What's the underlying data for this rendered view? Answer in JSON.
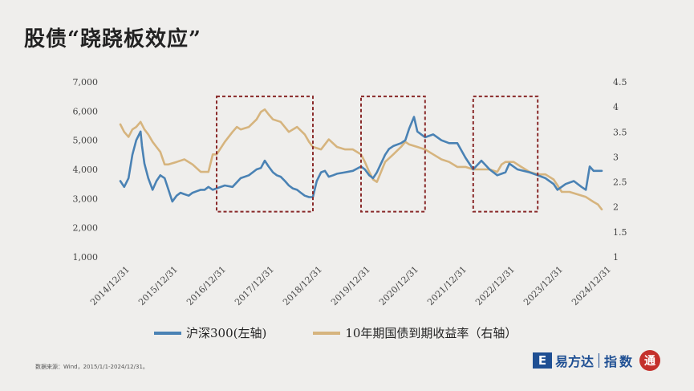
{
  "title": "股债“跷跷板效应”",
  "source_note": "数据来源：Wind，2015/1/1-2024/12/31。",
  "logo": {
    "mark": "E",
    "name": "易方达",
    "sub": "指数",
    "seal": "通"
  },
  "colors": {
    "csi300": "#4a82b4",
    "bond": "#d6b47e",
    "box": "#8a2a2a"
  },
  "chart_data": {
    "type": "line",
    "title": "股债“跷跷板效应”",
    "x_ticks": [
      "2014/12/31",
      "2015/12/31",
      "2016/12/31",
      "2017/12/31",
      "2018/12/31",
      "2019/12/31",
      "2020/12/31",
      "2021/12/31",
      "2022/12/31",
      "2023/12/31",
      "2024/12/31"
    ],
    "x_range": [
      2015.0,
      2025.0
    ],
    "y_left": {
      "ticks": [
        "1,000",
        "2,000",
        "3,000",
        "4,000",
        "5,000",
        "6,000",
        "7,000"
      ],
      "range": [
        1000,
        7000
      ]
    },
    "y_right": {
      "ticks": [
        "1",
        "1.5",
        "2",
        "2.5",
        "3",
        "3.5",
        "4",
        "4.5"
      ],
      "range": [
        1,
        4.5
      ]
    },
    "grid": false,
    "legend_position": "bottom",
    "series": [
      {
        "name": "沪深300(左轴)",
        "axis": "left",
        "x": [
          2015.0,
          2015.08,
          2015.17,
          2015.25,
          2015.33,
          2015.42,
          2015.45,
          2015.5,
          2015.58,
          2015.67,
          2015.75,
          2015.83,
          2015.92,
          2016.0,
          2016.08,
          2016.17,
          2016.25,
          2016.33,
          2016.42,
          2016.5,
          2016.58,
          2016.67,
          2016.75,
          2016.83,
          2016.92,
          2017.0,
          2017.17,
          2017.33,
          2017.5,
          2017.67,
          2017.83,
          2017.92,
          2018.0,
          2018.08,
          2018.17,
          2018.25,
          2018.33,
          2018.42,
          2018.5,
          2018.58,
          2018.67,
          2018.75,
          2018.83,
          2018.92,
          2019.0,
          2019.08,
          2019.17,
          2019.25,
          2019.33,
          2019.42,
          2019.5,
          2019.67,
          2019.83,
          2020.0,
          2020.08,
          2020.17,
          2020.25,
          2020.33,
          2020.5,
          2020.58,
          2020.67,
          2020.83,
          2020.92,
          2021.0,
          2021.1,
          2021.17,
          2021.25,
          2021.33,
          2021.5,
          2021.67,
          2021.83,
          2022.0,
          2022.17,
          2022.33,
          2022.5,
          2022.67,
          2022.83,
          2022.92,
          2023.0,
          2023.08,
          2023.25,
          2023.5,
          2023.67,
          2023.83,
          2024.0,
          2024.08,
          2024.25,
          2024.42,
          2024.58,
          2024.67,
          2024.75,
          2024.83,
          2024.92,
          2025.0
        ],
        "values": [
          3600,
          3400,
          3700,
          4500,
          5000,
          5300,
          4800,
          4200,
          3700,
          3300,
          3600,
          3800,
          3700,
          3300,
          2900,
          3100,
          3200,
          3150,
          3100,
          3200,
          3250,
          3300,
          3300,
          3400,
          3300,
          3350,
          3450,
          3400,
          3700,
          3800,
          4000,
          4050,
          4300,
          4100,
          3900,
          3800,
          3750,
          3600,
          3450,
          3350,
          3300,
          3200,
          3100,
          3050,
          3050,
          3600,
          3900,
          3950,
          3750,
          3800,
          3850,
          3900,
          3950,
          4100,
          4000,
          3800,
          3700,
          3900,
          4500,
          4700,
          4800,
          4900,
          5000,
          5400,
          5800,
          5300,
          5200,
          5100,
          5200,
          5000,
          4900,
          4900,
          4400,
          4000,
          4300,
          4000,
          3800,
          3850,
          3900,
          4200,
          4000,
          3900,
          3800,
          3700,
          3500,
          3300,
          3500,
          3600,
          3400,
          3300,
          4100,
          3950,
          3950,
          3950
        ]
      },
      {
        "name": "10年期国债到期收益率（右轴）",
        "axis": "right",
        "x": [
          2015.0,
          2015.08,
          2015.17,
          2015.25,
          2015.33,
          2015.42,
          2015.5,
          2015.58,
          2015.67,
          2015.75,
          2015.83,
          2015.92,
          2016.0,
          2016.17,
          2016.33,
          2016.5,
          2016.67,
          2016.83,
          2016.92,
          2017.0,
          2017.17,
          2017.33,
          2017.42,
          2017.5,
          2017.67,
          2017.83,
          2017.92,
          2018.0,
          2018.08,
          2018.17,
          2018.33,
          2018.5,
          2018.67,
          2018.83,
          2018.92,
          2019.0,
          2019.17,
          2019.33,
          2019.5,
          2019.67,
          2019.83,
          2020.0,
          2020.08,
          2020.17,
          2020.25,
          2020.33,
          2020.5,
          2020.67,
          2020.83,
          2020.92,
          2021.0,
          2021.17,
          2021.33,
          2021.5,
          2021.67,
          2021.83,
          2022.0,
          2022.17,
          2022.33,
          2022.5,
          2022.67,
          2022.83,
          2022.92,
          2023.0,
          2023.17,
          2023.33,
          2023.5,
          2023.67,
          2023.83,
          2024.0,
          2024.17,
          2024.33,
          2024.5,
          2024.67,
          2024.83,
          2024.92,
          2025.0
        ],
        "values": [
          3.65,
          3.5,
          3.4,
          3.55,
          3.6,
          3.7,
          3.55,
          3.45,
          3.3,
          3.2,
          3.1,
          2.85,
          2.85,
          2.9,
          2.95,
          2.85,
          2.7,
          2.7,
          3.05,
          3.05,
          3.3,
          3.5,
          3.6,
          3.55,
          3.6,
          3.75,
          3.9,
          3.95,
          3.85,
          3.75,
          3.7,
          3.5,
          3.6,
          3.45,
          3.3,
          3.2,
          3.15,
          3.35,
          3.2,
          3.15,
          3.15,
          3.05,
          2.9,
          2.7,
          2.55,
          2.5,
          2.9,
          3.05,
          3.2,
          3.3,
          3.25,
          3.2,
          3.15,
          3.05,
          2.95,
          2.9,
          2.8,
          2.8,
          2.75,
          2.75,
          2.75,
          2.7,
          2.85,
          2.9,
          2.9,
          2.8,
          2.7,
          2.65,
          2.65,
          2.55,
          2.3,
          2.3,
          2.25,
          2.2,
          2.1,
          2.05,
          1.95
        ]
      }
    ],
    "highlight_boxes": [
      {
        "x_start": 2017.0,
        "x_end": 2019.0,
        "y_top_left": 6500,
        "y_bottom_left": 2550
      },
      {
        "x_start": 2020.0,
        "x_end": 2021.33,
        "y_top_left": 6500,
        "y_bottom_left": 2550
      },
      {
        "x_start": 2022.33,
        "x_end": 2023.67,
        "y_top_left": 6500,
        "y_bottom_left": 2550
      }
    ]
  }
}
